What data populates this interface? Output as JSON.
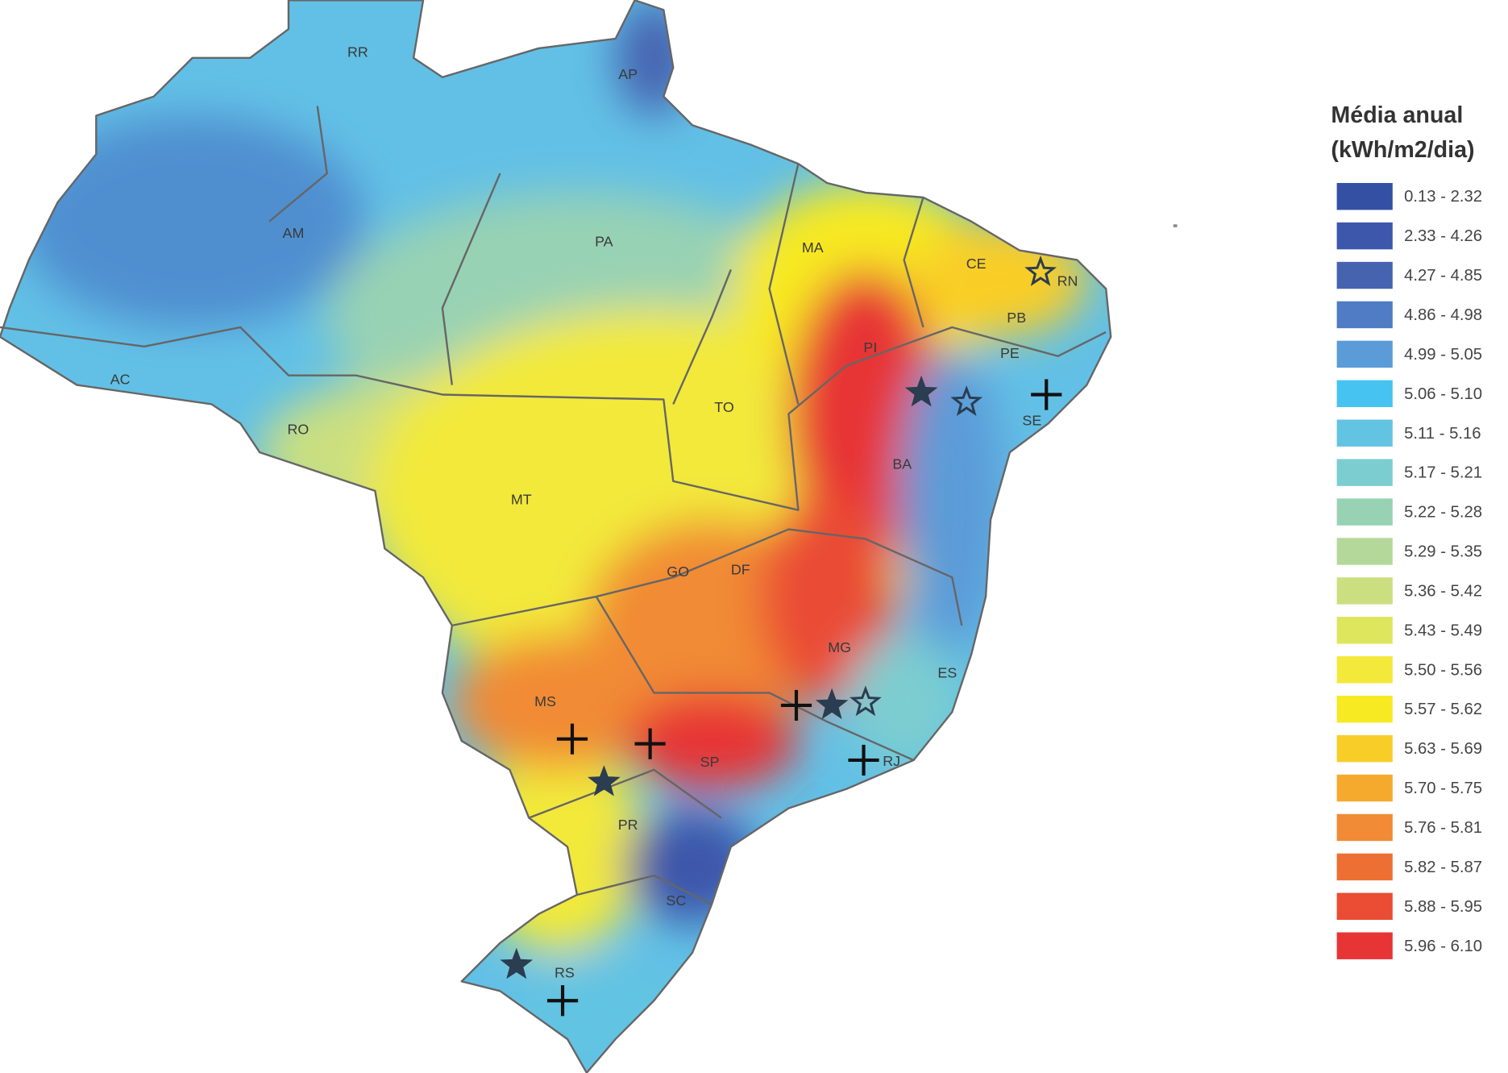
{
  "legend": {
    "title": [
      "Média anual",
      "(kWh/m2/dia)"
    ],
    "items": [
      {
        "label": "0.13 - 2.32",
        "color": "#3450a3"
      },
      {
        "label": "2.33 - 4.26",
        "color": "#3d57aa"
      },
      {
        "label": "4.27 - 4.85",
        "color": "#4663b0"
      },
      {
        "label": "4.86 - 4.98",
        "color": "#4f7cc4"
      },
      {
        "label": "4.99 - 5.05",
        "color": "#5b9bd8"
      },
      {
        "label": "5.06 - 5.10",
        "color": "#46c3f0"
      },
      {
        "label": "5.11 - 5.16",
        "color": "#62c4e2"
      },
      {
        "label": "5.17 - 5.21",
        "color": "#7ccdd0"
      },
      {
        "label": "5.22 - 5.28",
        "color": "#98d2b4"
      },
      {
        "label": "5.29 - 5.35",
        "color": "#b4d89a"
      },
      {
        "label": "5.36 - 5.42",
        "color": "#cbdf80"
      },
      {
        "label": "5.43 - 5.49",
        "color": "#dde65c"
      },
      {
        "label": "5.50 - 5.56",
        "color": "#f2e93a"
      },
      {
        "label": "5.57 - 5.62",
        "color": "#f7e922"
      },
      {
        "label": "5.63 - 5.69",
        "color": "#f9cd28"
      },
      {
        "label": "5.70 - 5.75",
        "color": "#f5aa2e"
      },
      {
        "label": "5.76 - 5.81",
        "color": "#f18b35"
      },
      {
        "label": "5.82 - 5.87",
        "color": "#ee6f33"
      },
      {
        "label": "5.88 - 5.95",
        "color": "#ea4c34"
      },
      {
        "label": "5.96 - 6.10",
        "color": "#e73536"
      }
    ]
  },
  "states": [
    "RR",
    "AP",
    "AM",
    "PA",
    "MA",
    "CE",
    "RN",
    "PB",
    "PE",
    "PI",
    "AC",
    "RO",
    "TO",
    "SE",
    "BA",
    "MT",
    "GO",
    "DF",
    "MG",
    "ES",
    "MS",
    "SP",
    "RJ",
    "PR",
    "SC",
    "RS"
  ]
}
